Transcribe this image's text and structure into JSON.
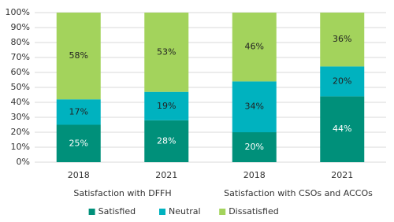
{
  "chart_data": {
    "type": "stacked_bar",
    "categories": [
      "2018",
      "2021",
      "2018",
      "2021"
    ],
    "group_labels": [
      "Satisfaction with DFFH",
      "Satisfaction with CSOs and ACCOs"
    ],
    "series": [
      {
        "name": "Satisfied",
        "color": "#00907a",
        "label_color": "#ffffff",
        "values": [
          25,
          28,
          20,
          44
        ],
        "value_labels": [
          "25%",
          "28%",
          "20%",
          "44%"
        ]
      },
      {
        "name": "Neutral",
        "color": "#00b2bf",
        "label_color": "#222222",
        "values": [
          17,
          19,
          34,
          20
        ],
        "value_labels": [
          "17%",
          "19%",
          "34%",
          "20%"
        ]
      },
      {
        "name": "Dissatisfied",
        "color": "#a3d35c",
        "label_color": "#222222",
        "values": [
          58,
          53,
          46,
          36
        ],
        "value_labels": [
          "58%",
          "53%",
          "46%",
          "36%"
        ]
      }
    ],
    "ylim": [
      0,
      100
    ],
    "yticks": [
      {
        "value": 0,
        "label": "0%"
      },
      {
        "value": 10,
        "label": "10%"
      },
      {
        "value": 20,
        "label": "20%"
      },
      {
        "value": 30,
        "label": "30%"
      },
      {
        "value": 40,
        "label": "40%"
      },
      {
        "value": 50,
        "label": "50%"
      },
      {
        "value": 60,
        "label": "60%"
      },
      {
        "value": 70,
        "label": "70%"
      },
      {
        "value": 80,
        "label": "80%"
      },
      {
        "value": 90,
        "label": "90%"
      },
      {
        "value": 100,
        "label": "100%"
      }
    ],
    "grid": true,
    "legend": "bottom"
  }
}
